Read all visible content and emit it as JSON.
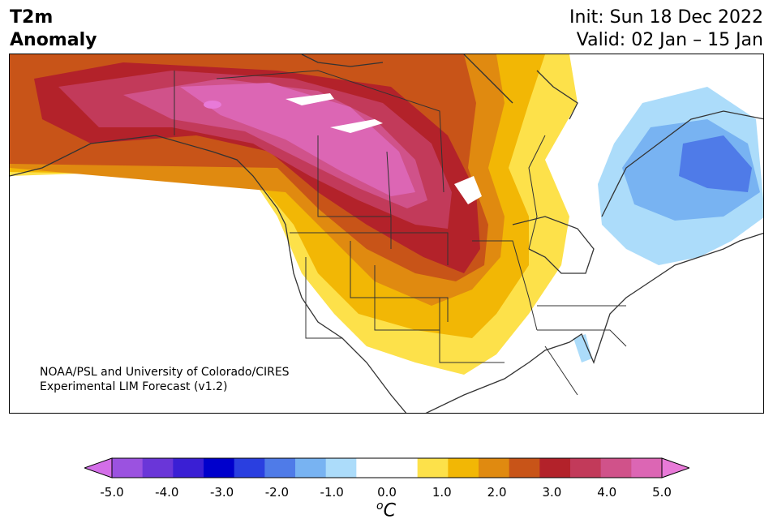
{
  "title": {
    "line1": "T2m",
    "line2": "Anomaly"
  },
  "dates": {
    "init": "Init: Sun 18 Dec 2022",
    "valid": "Valid: 02 Jan – 15 Jan"
  },
  "credit": {
    "line1": "NOAA/PSL and University of Colorado/CIRES",
    "line2": "Experimental LIM Forecast (v1.2)"
  },
  "colorbar": {
    "unit_sup": "o",
    "unit_main": "C",
    "colors": [
      "#d36ee8",
      "#9b52e0",
      "#6a36d8",
      "#3a1fd4",
      "#0000cc",
      "#2a3fe0",
      "#4f7be8",
      "#78b3f2",
      "#acdcfa",
      "#ffffff",
      "#ffffff",
      "#fde14a",
      "#f2b705",
      "#e08a10",
      "#c85418",
      "#b3222a",
      "#c23a5a",
      "#d0528a",
      "#dc66b4",
      "#e87ad8"
    ],
    "ticks": [
      "-5.0",
      "-4.0",
      "-3.0",
      "-2.0",
      "-1.0",
      "0.0",
      "1.0",
      "2.0",
      "3.0",
      "4.0",
      "5.0"
    ]
  }
}
